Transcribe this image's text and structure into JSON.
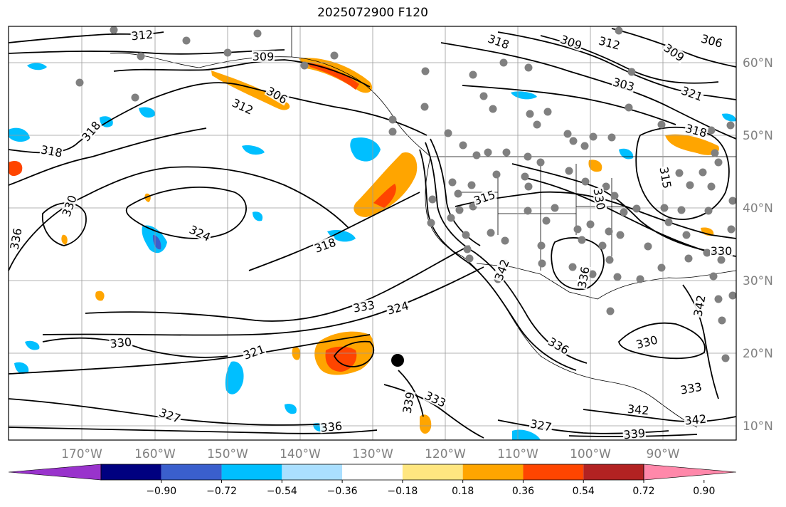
{
  "title": "2025072900 F120",
  "lon_labels": [
    "170°W",
    "160°W",
    "150°W",
    "140°W",
    "130°W",
    "120°W",
    "110°W",
    "100°W",
    "90°W"
  ],
  "lat_labels": [
    "60°N",
    "50°N",
    "40°N",
    "30°N",
    "20°N",
    "10°N"
  ],
  "colorbar": {
    "colors": [
      "#9933cc",
      "#000080",
      "#3a5fcd",
      "#00bfff",
      "#aadfff",
      "#ffffff",
      "#ffe680",
      "#ffa500",
      "#ff4500",
      "#b22222",
      "#ff88aa"
    ],
    "ticks": [
      "−0.90",
      "−0.72",
      "−0.54",
      "−0.36",
      "−0.18",
      "0.18",
      "0.36",
      "0.54",
      "0.72",
      "0.90"
    ]
  },
  "contour_labels": [
    "312",
    "309",
    "306",
    "312",
    "318",
    "318",
    "330",
    "336",
    "324",
    "318",
    "318",
    "309",
    "312",
    "309",
    "306",
    "303",
    "321",
    "315",
    "318",
    "315",
    "330",
    "333",
    "324",
    "330",
    "321",
    "327",
    "336",
    "339",
    "333",
    "330",
    "336",
    "342",
    "330",
    "327",
    "339",
    "342",
    "342",
    "333",
    "336",
    "342"
  ],
  "marker_color": "#000000",
  "station_color": "#808080"
}
